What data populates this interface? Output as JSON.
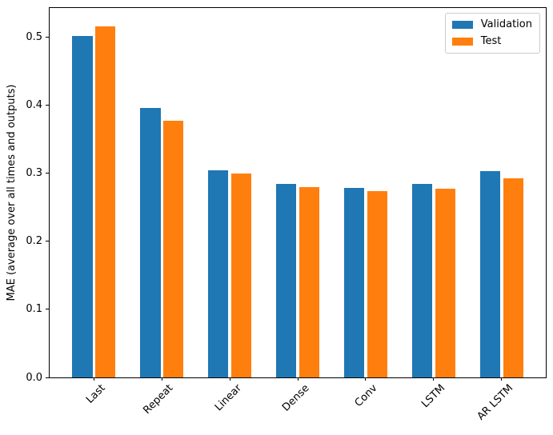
{
  "chart_data": {
    "type": "bar",
    "title": "",
    "xlabel": "",
    "ylabel": "MAE (average over all times and outputs)",
    "categories": [
      "Last",
      "Repeat",
      "Linear",
      "Dense",
      "Conv",
      "LSTM",
      "AR LSTM"
    ],
    "series": [
      {
        "name": "Validation",
        "color": "#1f77b4",
        "values": [
          0.502,
          0.396,
          0.305,
          0.284,
          0.279,
          0.284,
          0.303
        ]
      },
      {
        "name": "Test",
        "color": "#ff7f0e",
        "values": [
          0.516,
          0.377,
          0.3,
          0.28,
          0.274,
          0.277,
          0.293
        ]
      }
    ],
    "ylim": [
      0,
      0.543
    ],
    "xlim": [
      -0.65,
      6.65
    ],
    "yticks": [
      0.0,
      0.1,
      0.2,
      0.3,
      0.4,
      0.5
    ],
    "ytick_decimals": 1,
    "bar_width": 0.3,
    "bar_offset": 0.17,
    "xtick_rotation_deg": 45,
    "grid": false,
    "legend": {
      "position": "upper right",
      "items": [
        "Validation",
        "Test"
      ]
    }
  }
}
